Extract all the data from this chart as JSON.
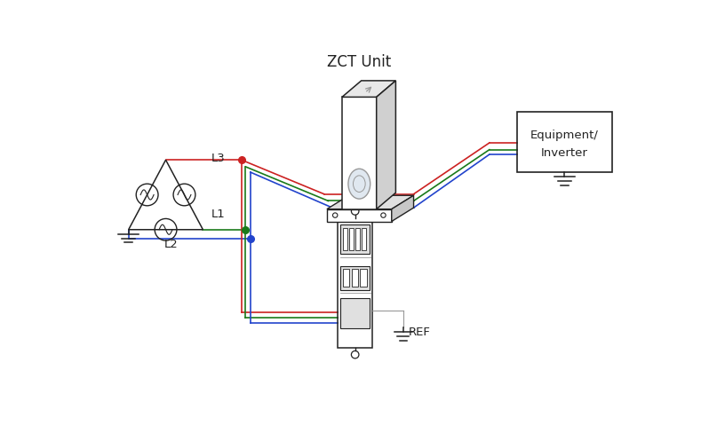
{
  "bg_color": "#ffffff",
  "line_red": "#cc2222",
  "line_green": "#1a7a1a",
  "line_blue": "#2244cc",
  "line_gray": "#999999",
  "line_black": "#222222",
  "line_light": "#bbbbbb",
  "fig_width": 7.98,
  "fig_height": 4.88,
  "dpi": 100,
  "xlim": [
    0,
    7.98
  ],
  "ylim": [
    0,
    4.88
  ]
}
